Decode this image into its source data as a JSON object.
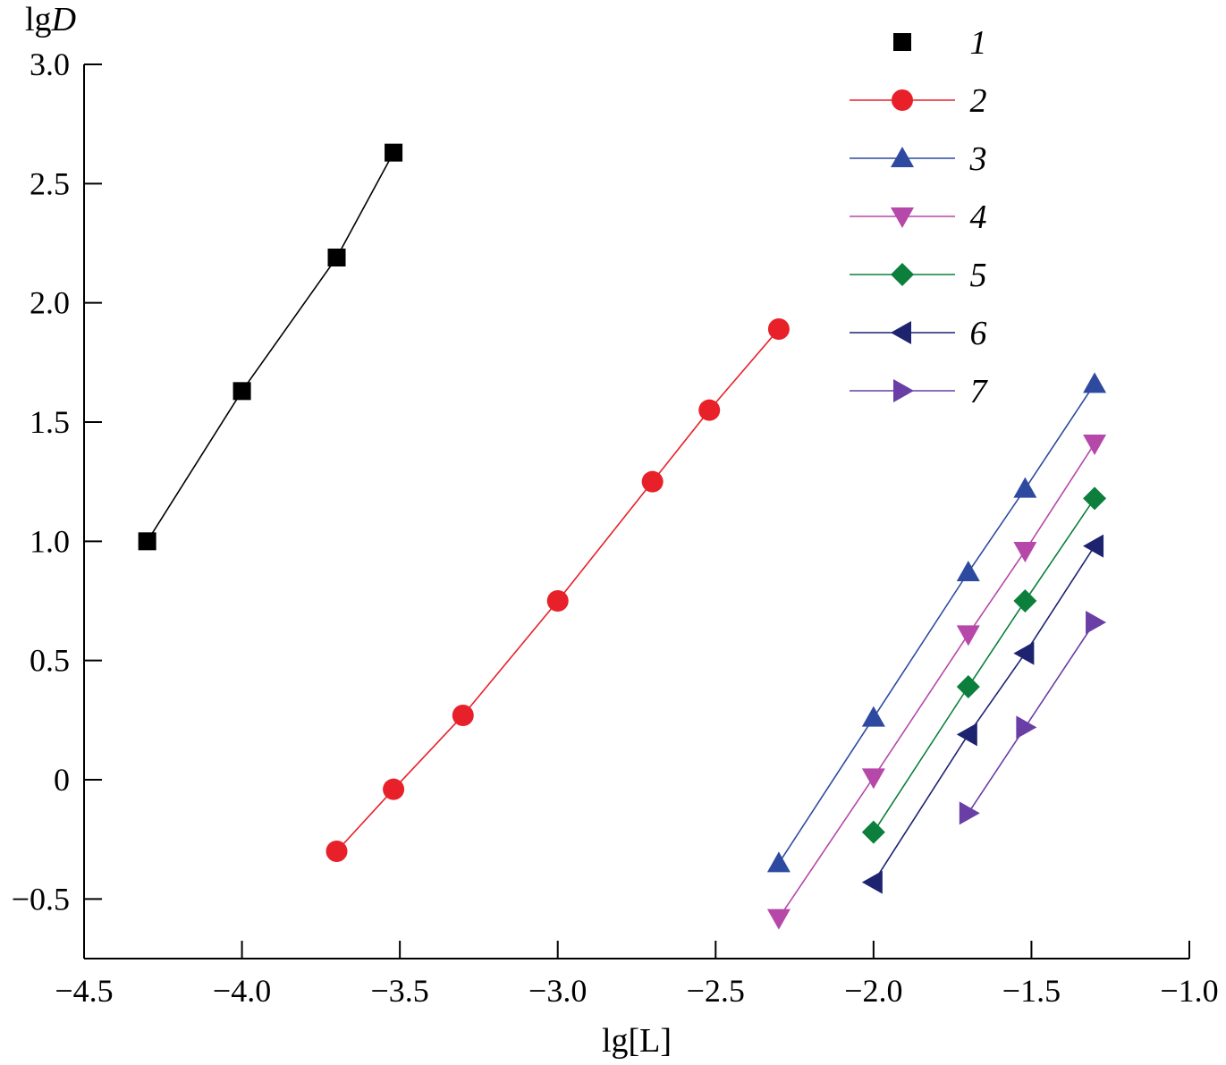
{
  "chart_data": {
    "type": "scatter",
    "title": "",
    "xlabel": "lg[L]",
    "ylabel_prefix": "lg",
    "ylabel_var": "D",
    "xlim": [
      -4.5,
      -1.0
    ],
    "ylim": [
      -0.75,
      3.0
    ],
    "xticks": [
      -4.5,
      -4.0,
      -3.5,
      -3.0,
      -2.5,
      -2.0,
      -1.5,
      -1.0
    ],
    "xtick_labels": [
      "−4.5",
      "−4.0",
      "−3.5",
      "−3.0",
      "−2.5",
      "−2.0",
      "−1.5",
      "−1.0"
    ],
    "yticks": [
      -0.5,
      0,
      0.5,
      1.0,
      1.5,
      2.0,
      2.5,
      3.0
    ],
    "ytick_labels": [
      "−0.5",
      "0",
      "0.5",
      "1.0",
      "1.5",
      "2.0",
      "2.5",
      "3.0"
    ],
    "grid": false,
    "legend_position": "top-right",
    "series": [
      {
        "name": "1",
        "marker": "square",
        "color": "#000000",
        "line_color": "#000000",
        "x": [
          -4.3,
          -4.0,
          -3.7,
          -3.52
        ],
        "y": [
          1.0,
          1.63,
          2.19,
          2.63
        ]
      },
      {
        "name": "2",
        "marker": "circle",
        "color": "#e8202a",
        "line_color": "#e8202a",
        "x": [
          -3.7,
          -3.52,
          -3.3,
          -3.0,
          -2.7,
          -2.52,
          -2.3
        ],
        "y": [
          -0.3,
          -0.04,
          0.27,
          0.75,
          1.25,
          1.55,
          1.89
        ]
      },
      {
        "name": "3",
        "marker": "triangle-up",
        "color": "#2e4aa0",
        "line_color": "#2e4aa0",
        "x": [
          -2.3,
          -2.0,
          -1.7,
          -1.52,
          -1.3
        ],
        "y": [
          -0.35,
          0.26,
          0.87,
          1.22,
          1.66
        ]
      },
      {
        "name": "4",
        "marker": "triangle-down",
        "color": "#b548a8",
        "line_color": "#b548a8",
        "x": [
          -2.3,
          -2.0,
          -1.7,
          -1.52,
          -1.3
        ],
        "y": [
          -0.58,
          0.01,
          0.61,
          0.96,
          1.41
        ]
      },
      {
        "name": "5",
        "marker": "diamond",
        "color": "#0b7f3b",
        "line_color": "#0b7f3b",
        "x": [
          -2.0,
          -1.7,
          -1.52,
          -1.3
        ],
        "y": [
          -0.22,
          0.39,
          0.75,
          1.18
        ]
      },
      {
        "name": "6",
        "marker": "triangle-left",
        "color": "#1e2370",
        "line_color": "#1e2370",
        "x": [
          -2.0,
          -1.7,
          -1.52,
          -1.3
        ],
        "y": [
          -0.43,
          0.19,
          0.53,
          0.98
        ]
      },
      {
        "name": "7",
        "marker": "triangle-right",
        "color": "#6a3fa5",
        "line_color": "#6a3fa5",
        "x": [
          -1.7,
          -1.52,
          -1.3
        ],
        "y": [
          -0.14,
          0.22,
          0.66
        ]
      }
    ]
  }
}
